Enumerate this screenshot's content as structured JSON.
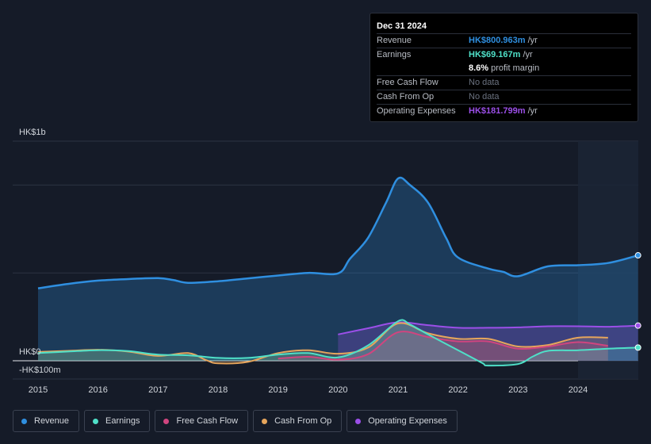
{
  "tooltip": {
    "date": "Dec 31 2024",
    "revenue_label": "Revenue",
    "revenue_value": "HK$800.963m",
    "earnings_label": "Earnings",
    "earnings_value": "HK$69.167m",
    "margin_value": "8.6%",
    "margin_text": "profit margin",
    "fcf_label": "Free Cash Flow",
    "fcf_value": "No data",
    "cfo_label": "Cash From Op",
    "cfo_value": "No data",
    "opex_label": "Operating Expenses",
    "opex_value": "HK$181.799m",
    "unit": "/yr"
  },
  "colors": {
    "revenue": "#2f8fe0",
    "earnings": "#4fe0c8",
    "fcf": "#d0457f",
    "cfo": "#e6a55c",
    "opex": "#9b4fe8"
  },
  "chart_data": {
    "type": "area",
    "title": "",
    "xlabel": "",
    "ylabel": "",
    "y_top_label": "HK$1b",
    "y_zero_label": "HK$0",
    "y_bottom_label": "-HK$100m",
    "ylim": [
      -100,
      1000
    ],
    "xlim": [
      2015,
      2025
    ],
    "x_ticks": [
      "2015",
      "2016",
      "2017",
      "2018",
      "2019",
      "2020",
      "2021",
      "2022",
      "2023",
      "2024"
    ],
    "x_tick_values": [
      2015,
      2016,
      2017,
      2018,
      2019,
      2020,
      2021,
      2022,
      2023,
      2024
    ],
    "grid": true,
    "legend_position": "bottom",
    "series": [
      {
        "name": "Revenue",
        "color": "#2f8fe0",
        "x": [
          2015,
          2015.5,
          2016,
          2016.5,
          2017,
          2017.25,
          2017.5,
          2018,
          2018.5,
          2019,
          2019.5,
          2020,
          2020.2,
          2020.5,
          2020.8,
          2021,
          2021.2,
          2021.5,
          2021.8,
          2022,
          2022.5,
          2022.75,
          2023,
          2023.5,
          2024,
          2024.5,
          2025
        ],
        "values": [
          330,
          350,
          365,
          372,
          376,
          368,
          355,
          362,
          375,
          388,
          400,
          398,
          465,
          560,
          720,
          830,
          800,
          720,
          560,
          470,
          420,
          405,
          385,
          430,
          435,
          445,
          480
        ]
      },
      {
        "name": "Earnings",
        "color": "#4fe0c8",
        "x": [
          2015,
          2015.5,
          2016,
          2016.5,
          2017,
          2017.5,
          2018,
          2018.5,
          2019,
          2019.5,
          2020,
          2020.5,
          2021,
          2021.2,
          2021.5,
          2022,
          2022.4,
          2022.5,
          2023,
          2023.25,
          2023.5,
          2024,
          2024.5,
          2025
        ],
        "values": [
          35,
          42,
          48,
          44,
          28,
          25,
          13,
          13,
          28,
          35,
          15,
          70,
          180,
          165,
          120,
          48,
          -10,
          -22,
          -15,
          20,
          45,
          48,
          55,
          60
        ]
      },
      {
        "name": "Free Cash Flow",
        "color": "#d0457f",
        "x": [
          2019,
          2019.5,
          2020,
          2020.5,
          2021,
          2021.5,
          2022,
          2022.5,
          2023,
          2023.5,
          2024,
          2024.5
        ],
        "values": [
          10,
          18,
          5,
          30,
          130,
          108,
          88,
          88,
          55,
          65,
          85,
          68
        ]
      },
      {
        "name": "Cash From Op",
        "color": "#e6a55c",
        "x": [
          2015,
          2015.5,
          2016,
          2016.5,
          2017,
          2017.5,
          2017.8,
          2018,
          2018.5,
          2019,
          2019.5,
          2020,
          2020.5,
          2021,
          2021.5,
          2022,
          2022.5,
          2023,
          2023.5,
          2024,
          2024.5
        ],
        "values": [
          40,
          45,
          50,
          42,
          22,
          35,
          3,
          -12,
          -5,
          35,
          48,
          32,
          60,
          170,
          125,
          100,
          100,
          65,
          72,
          105,
          105
        ]
      },
      {
        "name": "Operating Expenses",
        "color": "#9b4fe8",
        "x": [
          2020,
          2020.5,
          2021,
          2021.5,
          2022,
          2022.5,
          2023,
          2023.5,
          2024,
          2024.5,
          2025
        ],
        "values": [
          120,
          148,
          175,
          162,
          150,
          150,
          152,
          157,
          157,
          155,
          160
        ]
      }
    ]
  },
  "legend": [
    {
      "label": "Revenue"
    },
    {
      "label": "Earnings"
    },
    {
      "label": "Free Cash Flow"
    },
    {
      "label": "Cash From Op"
    },
    {
      "label": "Operating Expenses"
    }
  ]
}
